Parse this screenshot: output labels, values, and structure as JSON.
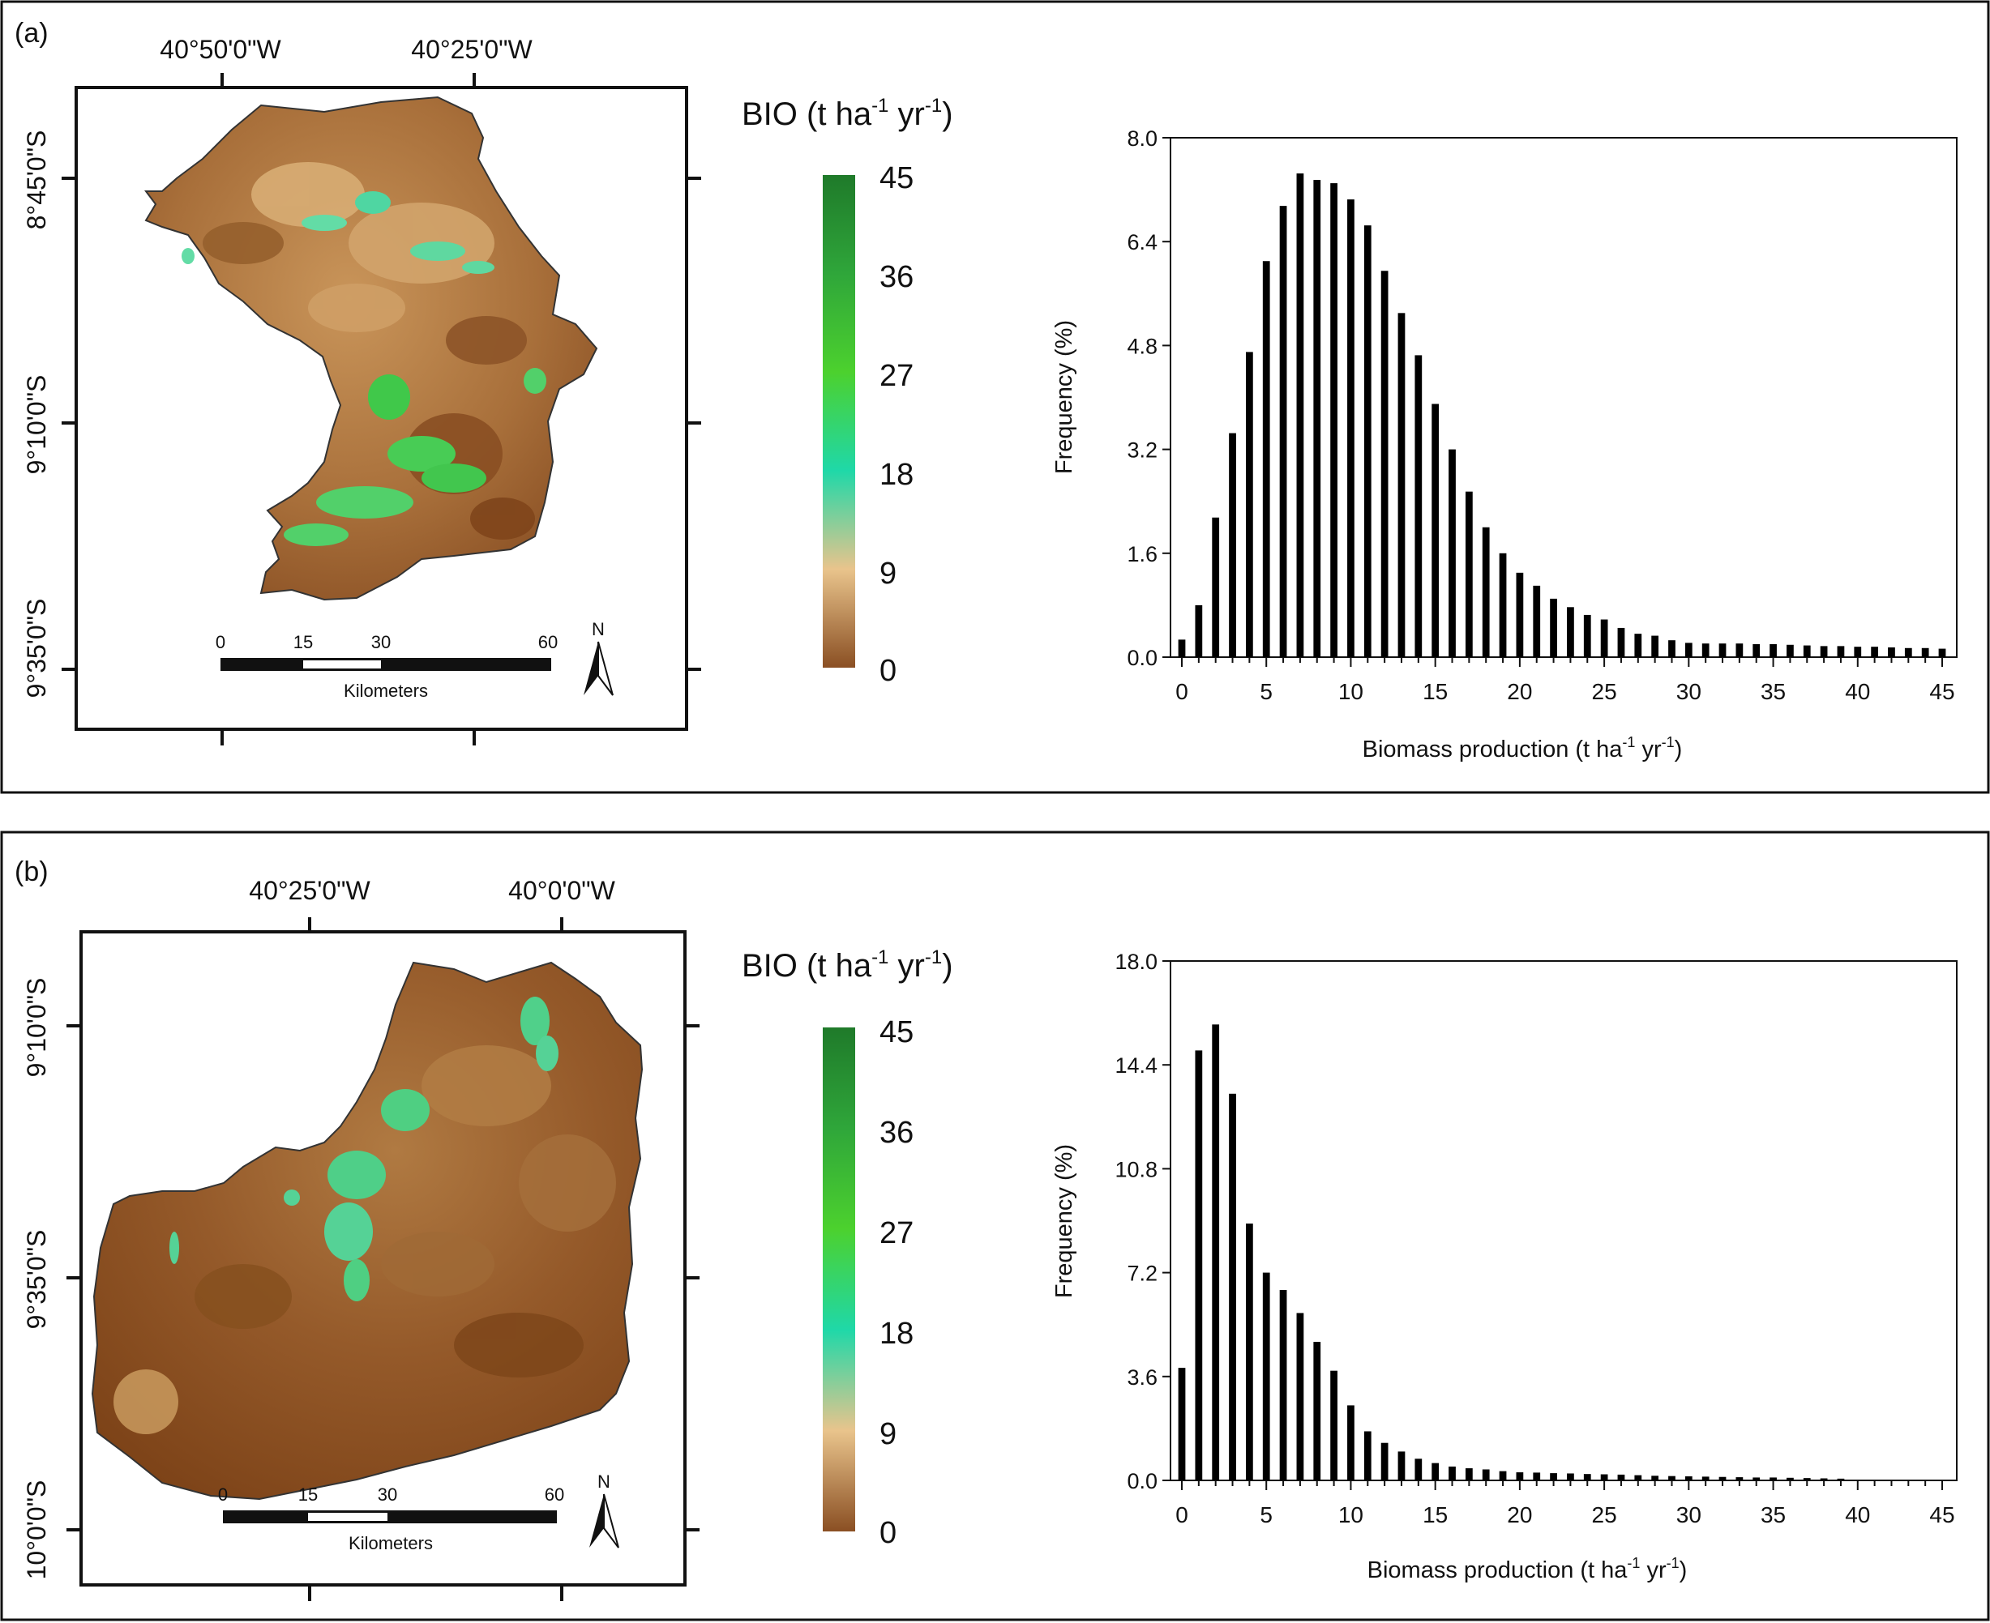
{
  "panels": [
    {
      "id": "a",
      "label": "(a)",
      "map": {
        "lon_labels": [
          "40°50'0\"W",
          "40°25'0\"W"
        ],
        "lat_labels": [
          "8°45'0\"S",
          "9°10'0\"S",
          "9°35'0\"S"
        ],
        "scalebar_ticks": [
          "0",
          "15",
          "30",
          "60"
        ],
        "scalebar_unit": "Kilometers",
        "north_label": "N"
      },
      "legend": {
        "title_main": "BIO (t ha",
        "title_sup1": "-1",
        "title_mid": " yr",
        "title_sup2": "-1",
        "title_end": ")",
        "ticks": [
          "45",
          "36",
          "27",
          "18",
          "9",
          "0"
        ],
        "colors": [
          "#1f7a2a",
          "#2fa63a",
          "#4cd12e",
          "#1fd8a8",
          "#e9c48c",
          "#8a4f23"
        ]
      },
      "xlabel": "Biomass production (t ha",
      "xlabel_sup1": "-1",
      "xlabel_mid": " yr",
      "xlabel_sup2": "-1",
      "xlabel_end": ")",
      "ylabel": "Frequency (%)"
    },
    {
      "id": "b",
      "label": "(b)",
      "map": {
        "lon_labels": [
          "40°25'0\"W",
          "40°0'0\"W"
        ],
        "lat_labels": [
          "9°10'0\"S",
          "9°35'0\"S",
          "10°0'0\"S"
        ],
        "scalebar_ticks": [
          "0",
          "15",
          "30",
          "60"
        ],
        "scalebar_unit": "Kilometers",
        "north_label": "N"
      },
      "legend": {
        "title_main": "BIO (t ha",
        "title_sup1": "-1",
        "title_mid": " yr",
        "title_sup2": "-1",
        "title_end": ")",
        "ticks": [
          "45",
          "36",
          "27",
          "18",
          "9",
          "0"
        ],
        "colors": [
          "#1f7a2a",
          "#2fa63a",
          "#4cd12e",
          "#1fd8a8",
          "#e9c48c",
          "#8a4f23"
        ]
      },
      "xlabel": "Biomass production (t ha",
      "xlabel_sup1": "-1",
      "xlabel_mid": " yr",
      "xlabel_sup2": "-1",
      "xlabel_end": ")",
      "ylabel": "Frequency (%)"
    }
  ],
  "chart_data": [
    {
      "type": "bar",
      "panel": "a",
      "xlabel": "Biomass production (t ha-1 yr-1)",
      "ylabel": "Frequency (%)",
      "xlim": [
        0,
        45
      ],
      "ylim": [
        0,
        8.0
      ],
      "x_ticks": [
        "0",
        "5",
        "10",
        "15",
        "20",
        "25",
        "30",
        "35",
        "40",
        "45"
      ],
      "y_ticks": [
        "0.0",
        "1.6",
        "3.2",
        "4.8",
        "6.4",
        "8.0"
      ],
      "x": [
        0,
        1,
        2,
        3,
        4,
        5,
        6,
        7,
        8,
        9,
        10,
        11,
        12,
        13,
        14,
        15,
        16,
        17,
        18,
        19,
        20,
        21,
        22,
        23,
        24,
        25,
        26,
        27,
        28,
        29,
        30,
        31,
        32,
        33,
        34,
        35,
        36,
        37,
        38,
        39,
        40,
        41,
        42,
        43,
        44,
        45
      ],
      "values": [
        0.27,
        0.8,
        2.15,
        3.45,
        4.7,
        6.1,
        6.95,
        7.45,
        7.35,
        7.3,
        7.05,
        6.65,
        5.95,
        5.3,
        4.65,
        3.9,
        3.2,
        2.55,
        2.0,
        1.6,
        1.3,
        1.1,
        0.9,
        0.77,
        0.65,
        0.58,
        0.45,
        0.36,
        0.33,
        0.26,
        0.22,
        0.21,
        0.21,
        0.21,
        0.2,
        0.2,
        0.19,
        0.18,
        0.17,
        0.17,
        0.16,
        0.16,
        0.15,
        0.14,
        0.14,
        0.13
      ],
      "grid": false
    },
    {
      "type": "bar",
      "panel": "b",
      "xlabel": "Biomass production (t ha-1 yr-1)",
      "ylabel": "Frequency (%)",
      "xlim": [
        0,
        45
      ],
      "ylim": [
        0,
        18.0
      ],
      "x_ticks": [
        "0",
        "5",
        "10",
        "15",
        "20",
        "25",
        "30",
        "35",
        "40",
        "45"
      ],
      "y_ticks": [
        "0.0",
        "3.6",
        "7.2",
        "10.8",
        "14.4",
        "18.0"
      ],
      "x": [
        0,
        1,
        2,
        3,
        4,
        5,
        6,
        7,
        8,
        9,
        10,
        11,
        12,
        13,
        14,
        15,
        16,
        17,
        18,
        19,
        20,
        21,
        22,
        23,
        24,
        25,
        26,
        27,
        28,
        29,
        30,
        31,
        32,
        33,
        34,
        35,
        36,
        37,
        38,
        39
      ],
      "values": [
        3.9,
        14.9,
        15.8,
        13.4,
        8.9,
        7.2,
        6.6,
        5.8,
        4.8,
        3.8,
        2.6,
        1.7,
        1.3,
        1.0,
        0.75,
        0.6,
        0.48,
        0.42,
        0.38,
        0.32,
        0.28,
        0.27,
        0.25,
        0.24,
        0.22,
        0.21,
        0.2,
        0.18,
        0.16,
        0.15,
        0.14,
        0.13,
        0.12,
        0.11,
        0.1,
        0.1,
        0.09,
        0.08,
        0.07,
        0.06
      ],
      "grid": false
    }
  ]
}
